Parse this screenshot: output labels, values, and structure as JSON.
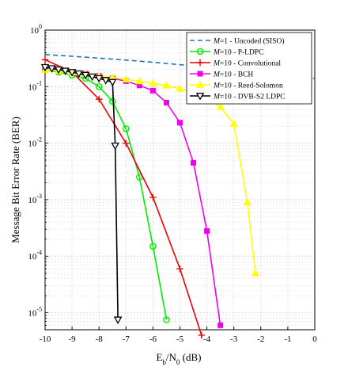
{
  "chart_data": {
    "type": "line",
    "y_scale": "log",
    "grid": true,
    "legend_position": "top-right",
    "xlabel": {
      "base": "E",
      "sub1": "b",
      "mid": "/N",
      "sub2": "0",
      "tail": " (dB)"
    },
    "ylabel": "Message Bit Error Rate (BER)",
    "xlim": [
      -10,
      0
    ],
    "ylim": [
      5e-06,
      1
    ],
    "xticks": [
      -10,
      -9,
      -8,
      -7,
      -6,
      -5,
      -4,
      -3,
      -2,
      -1,
      0
    ],
    "ytick_exponents": [
      0,
      -1,
      -2,
      -3,
      -4,
      -5
    ],
    "series": [
      {
        "name_prefix": "M",
        "name_eq": "=1",
        "name_rest": " - Uncoded (SISO)",
        "color": "#1f77b4",
        "dash": "6,4",
        "marker": "none",
        "x": [
          -10,
          -9,
          -8,
          -7,
          -6,
          -5,
          -4,
          -3,
          -2,
          -1,
          0
        ],
        "y": [
          0.37,
          0.345,
          0.32,
          0.295,
          0.27,
          0.245,
          0.22,
          0.197,
          0.175,
          0.155,
          0.14
        ]
      },
      {
        "name_prefix": "M",
        "name_eq": "=10",
        "name_rest": " - P-LDPC",
        "color": "#00ee00",
        "dash": "",
        "marker": "circle",
        "x": [
          -10,
          -9.5,
          -9,
          -8.5,
          -8,
          -7.5,
          -7,
          -6.5,
          -6,
          -5.5
        ],
        "y": [
          0.2,
          0.18,
          0.16,
          0.14,
          0.1,
          0.055,
          0.018,
          0.0025,
          0.00015,
          7.5e-06
        ]
      },
      {
        "name_prefix": "M",
        "name_eq": "=10",
        "name_rest": " - Convolutional",
        "color": "#ee0000",
        "dash": "",
        "marker": "plus",
        "x": [
          -10,
          -9,
          -8,
          -7,
          -6,
          -5,
          -4.2
        ],
        "y": [
          0.3,
          0.18,
          0.06,
          0.01,
          0.0011,
          6e-05,
          4e-06
        ]
      },
      {
        "name_prefix": "M",
        "name_eq": "=10",
        "name_rest": " - BCH",
        "color": "#ee00ee",
        "dash": "",
        "marker": "square",
        "x": [
          -10,
          -9.5,
          -9,
          -8.5,
          -8,
          -7.5,
          -7,
          -6.5,
          -6,
          -5.5,
          -5,
          -4.5,
          -4,
          -3.5
        ],
        "y": [
          0.2,
          0.19,
          0.18,
          0.17,
          0.155,
          0.14,
          0.125,
          0.105,
          0.085,
          0.052,
          0.023,
          0.0045,
          0.00028,
          6e-06
        ]
      },
      {
        "name_prefix": "M",
        "name_eq": "=10",
        "name_rest": " - Reed-Solomon",
        "color": "#ffff00",
        "dash": "",
        "marker": "triangle-up",
        "x": [
          -10,
          -9.5,
          -9,
          -8.5,
          -8,
          -7.5,
          -7,
          -6.5,
          -6,
          -5.5,
          -5,
          -4.5,
          -4,
          -3.5,
          -3,
          -2.5,
          -2.2
        ],
        "y": [
          0.2,
          0.19,
          0.18,
          0.17,
          0.155,
          0.145,
          0.135,
          0.125,
          0.115,
          0.105,
          0.092,
          0.08,
          0.06,
          0.044,
          0.022,
          0.0009,
          5e-05
        ]
      },
      {
        "name_prefix": "M",
        "name_eq": "=10",
        "name_rest": " - DVB-S2 LDPC",
        "color": "#000000",
        "dash": "",
        "marker": "triangle-down",
        "x": [
          -10,
          -9.75,
          -9.5,
          -9.25,
          -9,
          -8.75,
          -8.5,
          -8.25,
          -8,
          -7.75,
          -7.5,
          -7.4,
          -7.3
        ],
        "y": [
          0.22,
          0.21,
          0.2,
          0.19,
          0.18,
          0.17,
          0.16,
          0.15,
          0.14,
          0.13,
          0.12,
          0.009,
          7.5e-06
        ]
      }
    ]
  }
}
